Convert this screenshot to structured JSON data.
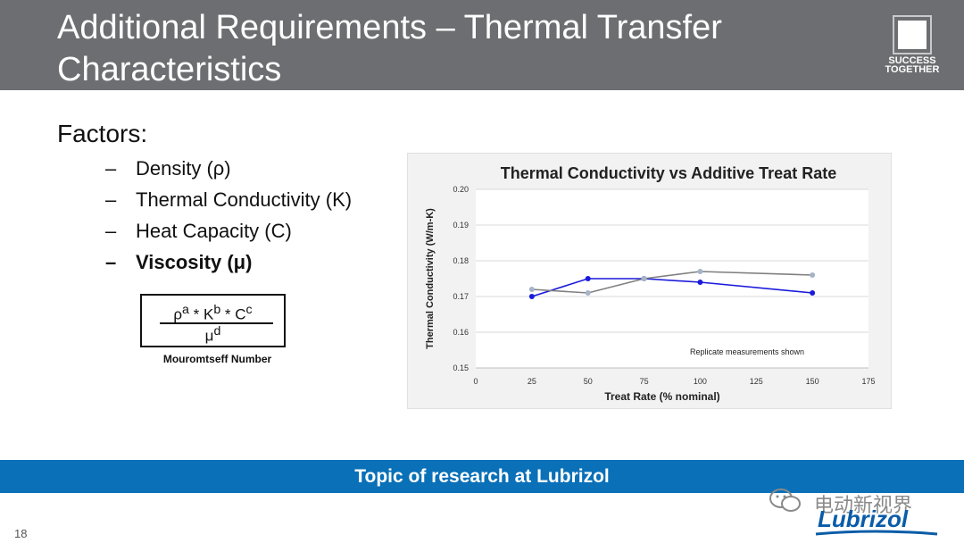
{
  "slide": {
    "title_line1": "Additional Requirements – Thermal Transfer",
    "title_line2": "Characteristics",
    "logo_text_line1": "SUCCESS",
    "logo_text_line2": "TOGETHER",
    "factors_heading": "Factors:",
    "bullets": [
      {
        "dash": "–",
        "text": "Density (ρ)"
      },
      {
        "dash": "–",
        "text": "Thermal Conductivity (K)"
      },
      {
        "dash": "–",
        "text": "Heat Capacity (C)"
      },
      {
        "dash": "–",
        "text": "Viscosity (μ)"
      }
    ],
    "formula": {
      "rho": "ρ",
      "rho_exp": "a",
      "star1": " * ",
      "k": "K",
      "k_exp": "b",
      "star2": " * ",
      "c": "C",
      "c_exp": "c",
      "mu": "μ",
      "mu_exp": "d",
      "caption": "Mouromtseff Number"
    },
    "banner_text": "Topic of research at Lubrizol",
    "page_number": "18",
    "watermark_text": "电动新视界",
    "brand_text": "Lubrizol",
    "colors": {
      "header": "#6d6e71",
      "banner": "#0a70b8",
      "series_blue": "#1a1adb",
      "series_gray": "#7f7f7f"
    }
  },
  "chart_data": {
    "type": "line",
    "title": "Thermal Conductivity vs Additive Treat Rate",
    "xlabel": "Treat Rate (% nominal)",
    "ylabel": "Thermal Conductivity (W/m-K)",
    "xlim": [
      0,
      175
    ],
    "ylim": [
      0.15,
      0.2
    ],
    "xticks": [
      0,
      25,
      50,
      75,
      100,
      125,
      150,
      175
    ],
    "yticks": [
      0.15,
      0.16,
      0.17,
      0.18,
      0.19,
      0.2
    ],
    "ytick_labels": [
      "0.15",
      "0.16",
      "0.17",
      "0.18",
      "0.19",
      "0.20"
    ],
    "grid": true,
    "annotation": "Replicate measurements shown",
    "series": [
      {
        "color": "#1a1adb",
        "x": [
          25,
          50,
          75,
          100,
          150
        ],
        "y": [
          0.17,
          0.175,
          0.175,
          0.174,
          0.171
        ]
      },
      {
        "color": "#7f7f7f",
        "x": [
          25,
          50,
          75,
          100,
          150
        ],
        "y": [
          0.172,
          0.171,
          0.175,
          0.177,
          0.176
        ]
      }
    ]
  }
}
